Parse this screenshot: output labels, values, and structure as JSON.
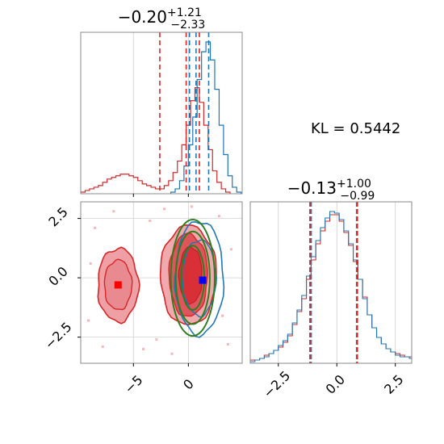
{
  "chart_data": [
    {
      "type": "histogram",
      "panel": "top-left",
      "title": {
        "value": "−0.20",
        "plus": "+1.21",
        "minus": "−2.33"
      },
      "xlim": [
        -9.8,
        4.9
      ],
      "grid": true,
      "dashed_lines": {
        "red": [
          -2.6,
          -0.2,
          1.0
        ],
        "blue": [
          0.1,
          0.7,
          1.85
        ]
      },
      "series": [
        {
          "color": "#d62728",
          "x": [
            -9.8,
            -9.4,
            -9.0,
            -8.6,
            -8.2,
            -7.8,
            -7.4,
            -7.0,
            -6.6,
            -6.2,
            -5.8,
            -5.4,
            -5.0,
            -4.6,
            -4.2,
            -3.8,
            -3.4,
            -3.0,
            -2.6,
            -2.2,
            -1.8,
            -1.4,
            -1.0,
            -0.6,
            -0.2,
            0.2,
            0.6,
            1.0,
            1.4,
            1.8,
            2.2,
            2.6,
            3.0,
            3.4
          ],
          "values": [
            1,
            2,
            3,
            4,
            5,
            7,
            9,
            10,
            11,
            12,
            12,
            11,
            10,
            8,
            6,
            5,
            4,
            3,
            3,
            5,
            8,
            13,
            20,
            30,
            42,
            57,
            65,
            56,
            42,
            27,
            14,
            7,
            3,
            1
          ]
        },
        {
          "color": "#1f77b4",
          "x": [
            -1.6,
            -1.2,
            -0.8,
            -0.4,
            0.0,
            0.4,
            0.8,
            1.2,
            1.6,
            2.0,
            2.4,
            2.8,
            3.2,
            3.6,
            4.0,
            4.4
          ],
          "values": [
            1,
            3,
            8,
            17,
            30,
            47,
            70,
            87,
            93,
            82,
            64,
            42,
            24,
            11,
            4,
            1
          ]
        }
      ]
    },
    {
      "type": "contour",
      "panel": "bottom-left",
      "xlim": [
        -9.8,
        4.9
      ],
      "ylim": [
        -3.6,
        3.2
      ],
      "x_ticks": [
        "−5",
        "0"
      ],
      "y_ticks": [
        "2.5",
        "0.0",
        "−2.5"
      ],
      "grid": true,
      "markers": [
        {
          "color": "#ff0000",
          "x": -6.4,
          "y": -0.3
        },
        {
          "color": "#0000ff",
          "x": 1.3,
          "y": -0.1
        }
      ],
      "series": [
        {
          "name": "",
          "color": "#d62728",
          "kind": "filled contours, bimodal",
          "centers": [
            [
              -6.4,
              -0.3
            ],
            [
              0.0,
              0.1
            ]
          ]
        },
        {
          "name": "",
          "color": "#1f77b4",
          "kind": "contour lines",
          "centers": [
            [
              1.0,
              0.0
            ]
          ]
        },
        {
          "name": "",
          "color": "#2ca02c",
          "kind": "ellipses",
          "centers": [
            [
              0.4,
              0.0
            ]
          ]
        }
      ]
    },
    {
      "type": "histogram",
      "panel": "bottom-right",
      "title": {
        "value": "−0.13",
        "plus": "+1.00",
        "minus": "−0.99"
      },
      "xlim": [
        -3.7,
        3.2
      ],
      "x_ticks": [
        "−2.5",
        "0.0",
        "2.5"
      ],
      "grid": true,
      "dashed_lines": {
        "red": [
          -1.15,
          0.88
        ],
        "blue": [
          -1.1,
          0.85
        ]
      },
      "series": [
        {
          "color": "#d62728",
          "x": [
            -3.7,
            -3.5,
            -3.3,
            -3.1,
            -2.9,
            -2.7,
            -2.5,
            -2.3,
            -2.1,
            -1.9,
            -1.7,
            -1.5,
            -1.3,
            -1.1,
            -0.9,
            -0.7,
            -0.5,
            -0.3,
            -0.1,
            0.1,
            0.3,
            0.5,
            0.7,
            0.9,
            1.1,
            1.3,
            1.5,
            1.7,
            1.9,
            2.1,
            2.3,
            2.5,
            2.7,
            2.9,
            3.1
          ],
          "values": [
            2,
            2,
            3,
            5,
            6,
            8,
            10,
            13,
            17,
            24,
            32,
            40,
            52,
            64,
            74,
            82,
            88,
            92,
            92,
            88,
            81,
            73,
            63,
            52,
            41,
            30,
            22,
            16,
            12,
            9,
            7,
            6,
            5,
            4,
            4
          ]
        },
        {
          "color": "#1f77b4",
          "x": [
            -3.7,
            -3.5,
            -3.3,
            -3.1,
            -2.9,
            -2.7,
            -2.5,
            -2.3,
            -2.1,
            -1.9,
            -1.7,
            -1.5,
            -1.3,
            -1.1,
            -0.9,
            -0.7,
            -0.5,
            -0.3,
            -0.1,
            0.1,
            0.3,
            0.5,
            0.7,
            0.9,
            1.1,
            1.3,
            1.5,
            1.7,
            1.9,
            2.1,
            2.3,
            2.5,
            2.7,
            2.9,
            3.1
          ],
          "values": [
            1,
            2,
            3,
            4,
            6,
            8,
            11,
            14,
            18,
            25,
            33,
            42,
            54,
            66,
            76,
            84,
            90,
            94,
            93,
            89,
            82,
            74,
            64,
            52,
            40,
            30,
            22,
            16,
            12,
            9,
            7,
            5,
            4,
            4,
            3
          ]
        }
      ]
    }
  ],
  "annotation": {
    "kl_text": "KL = 0.5442"
  }
}
